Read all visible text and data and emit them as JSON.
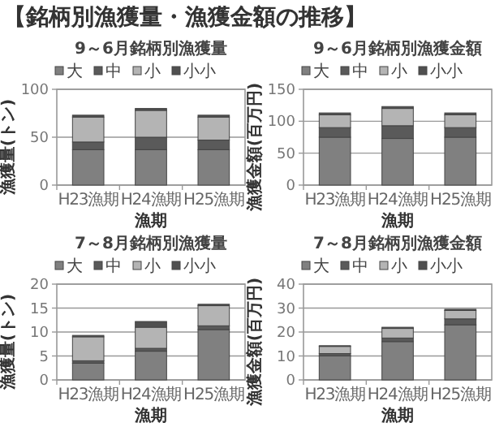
{
  "chart_data": [
    {
      "type": "bar",
      "stacked": true,
      "annotations": [
        "【銘柄別漁獲量・漁獲金額の推移】"
      ],
      "title": "9～6月銘柄別漁獲量",
      "xlabel": "漁期",
      "ylabel": "漁獲量(トン)",
      "categories": [
        "H23漁期",
        "H24漁期",
        "H25漁期"
      ],
      "ylim": [
        0,
        100
      ],
      "yticks": [
        0,
        50,
        100
      ],
      "grid": "y",
      "legend": "top",
      "series": [
        {
          "name": "大",
          "color": "#808080",
          "values": [
            37,
            37,
            37
          ]
        },
        {
          "name": "中",
          "color": "#5a5a5a",
          "values": [
            8,
            13,
            10
          ]
        },
        {
          "name": "小",
          "color": "#b4b4b4",
          "values": [
            26,
            28,
            24
          ]
        },
        {
          "name": "小小",
          "color": "#505050",
          "values": [
            2,
            2,
            2
          ]
        }
      ]
    },
    {
      "type": "bar",
      "stacked": true,
      "title": "9～6月銘柄別漁獲金額",
      "xlabel": "漁期",
      "ylabel": "漁獲金額(百万円)",
      "categories": [
        "H23漁期",
        "H24漁期",
        "H25漁期"
      ],
      "ylim": [
        0,
        150
      ],
      "yticks": [
        0,
        50,
        100,
        150
      ],
      "grid": "y",
      "legend": "top",
      "series": [
        {
          "name": "大",
          "color": "#808080",
          "values": [
            75,
            73,
            75
          ]
        },
        {
          "name": "中",
          "color": "#5a5a5a",
          "values": [
            15,
            20,
            15
          ]
        },
        {
          "name": "小",
          "color": "#b4b4b4",
          "values": [
            20,
            27,
            20
          ]
        },
        {
          "name": "小小",
          "color": "#505050",
          "values": [
            3,
            3,
            3
          ]
        }
      ]
    },
    {
      "type": "bar",
      "stacked": true,
      "title": "7～8月銘柄別漁獲量",
      "xlabel": "漁期",
      "ylabel": "漁獲量(トン)",
      "categories": [
        "H23漁期",
        "H24漁期",
        "H25漁期"
      ],
      "ylim": [
        0,
        20
      ],
      "yticks": [
        0,
        5,
        10,
        15,
        20
      ],
      "grid": "y",
      "legend": "top",
      "series": [
        {
          "name": "大",
          "color": "#808080",
          "values": [
            3.5,
            6,
            10.5
          ]
        },
        {
          "name": "中",
          "color": "#5a5a5a",
          "values": [
            0.5,
            0.6,
            0.8
          ]
        },
        {
          "name": "小",
          "color": "#b4b4b4",
          "values": [
            5,
            4.4,
            4.2
          ]
        },
        {
          "name": "小小",
          "color": "#505050",
          "values": [
            0.3,
            1.2,
            0.3
          ]
        }
      ]
    },
    {
      "type": "bar",
      "stacked": true,
      "title": "7～8月銘柄別漁獲金額",
      "xlabel": "漁期",
      "ylabel": "漁獲金額(百万円)",
      "categories": [
        "H23漁期",
        "H24漁期",
        "H25漁期"
      ],
      "ylim": [
        0,
        40
      ],
      "yticks": [
        0,
        10,
        20,
        30,
        40
      ],
      "grid": "y",
      "legend": "top",
      "series": [
        {
          "name": "大",
          "color": "#808080",
          "values": [
            10,
            16,
            23
          ]
        },
        {
          "name": "中",
          "color": "#5a5a5a",
          "values": [
            1,
            1.5,
            2.5
          ]
        },
        {
          "name": "小",
          "color": "#b4b4b4",
          "values": [
            3,
            4,
            3.5
          ]
        },
        {
          "name": "小小",
          "color": "#505050",
          "values": [
            0.3,
            0.5,
            0.5
          ]
        }
      ]
    }
  ]
}
